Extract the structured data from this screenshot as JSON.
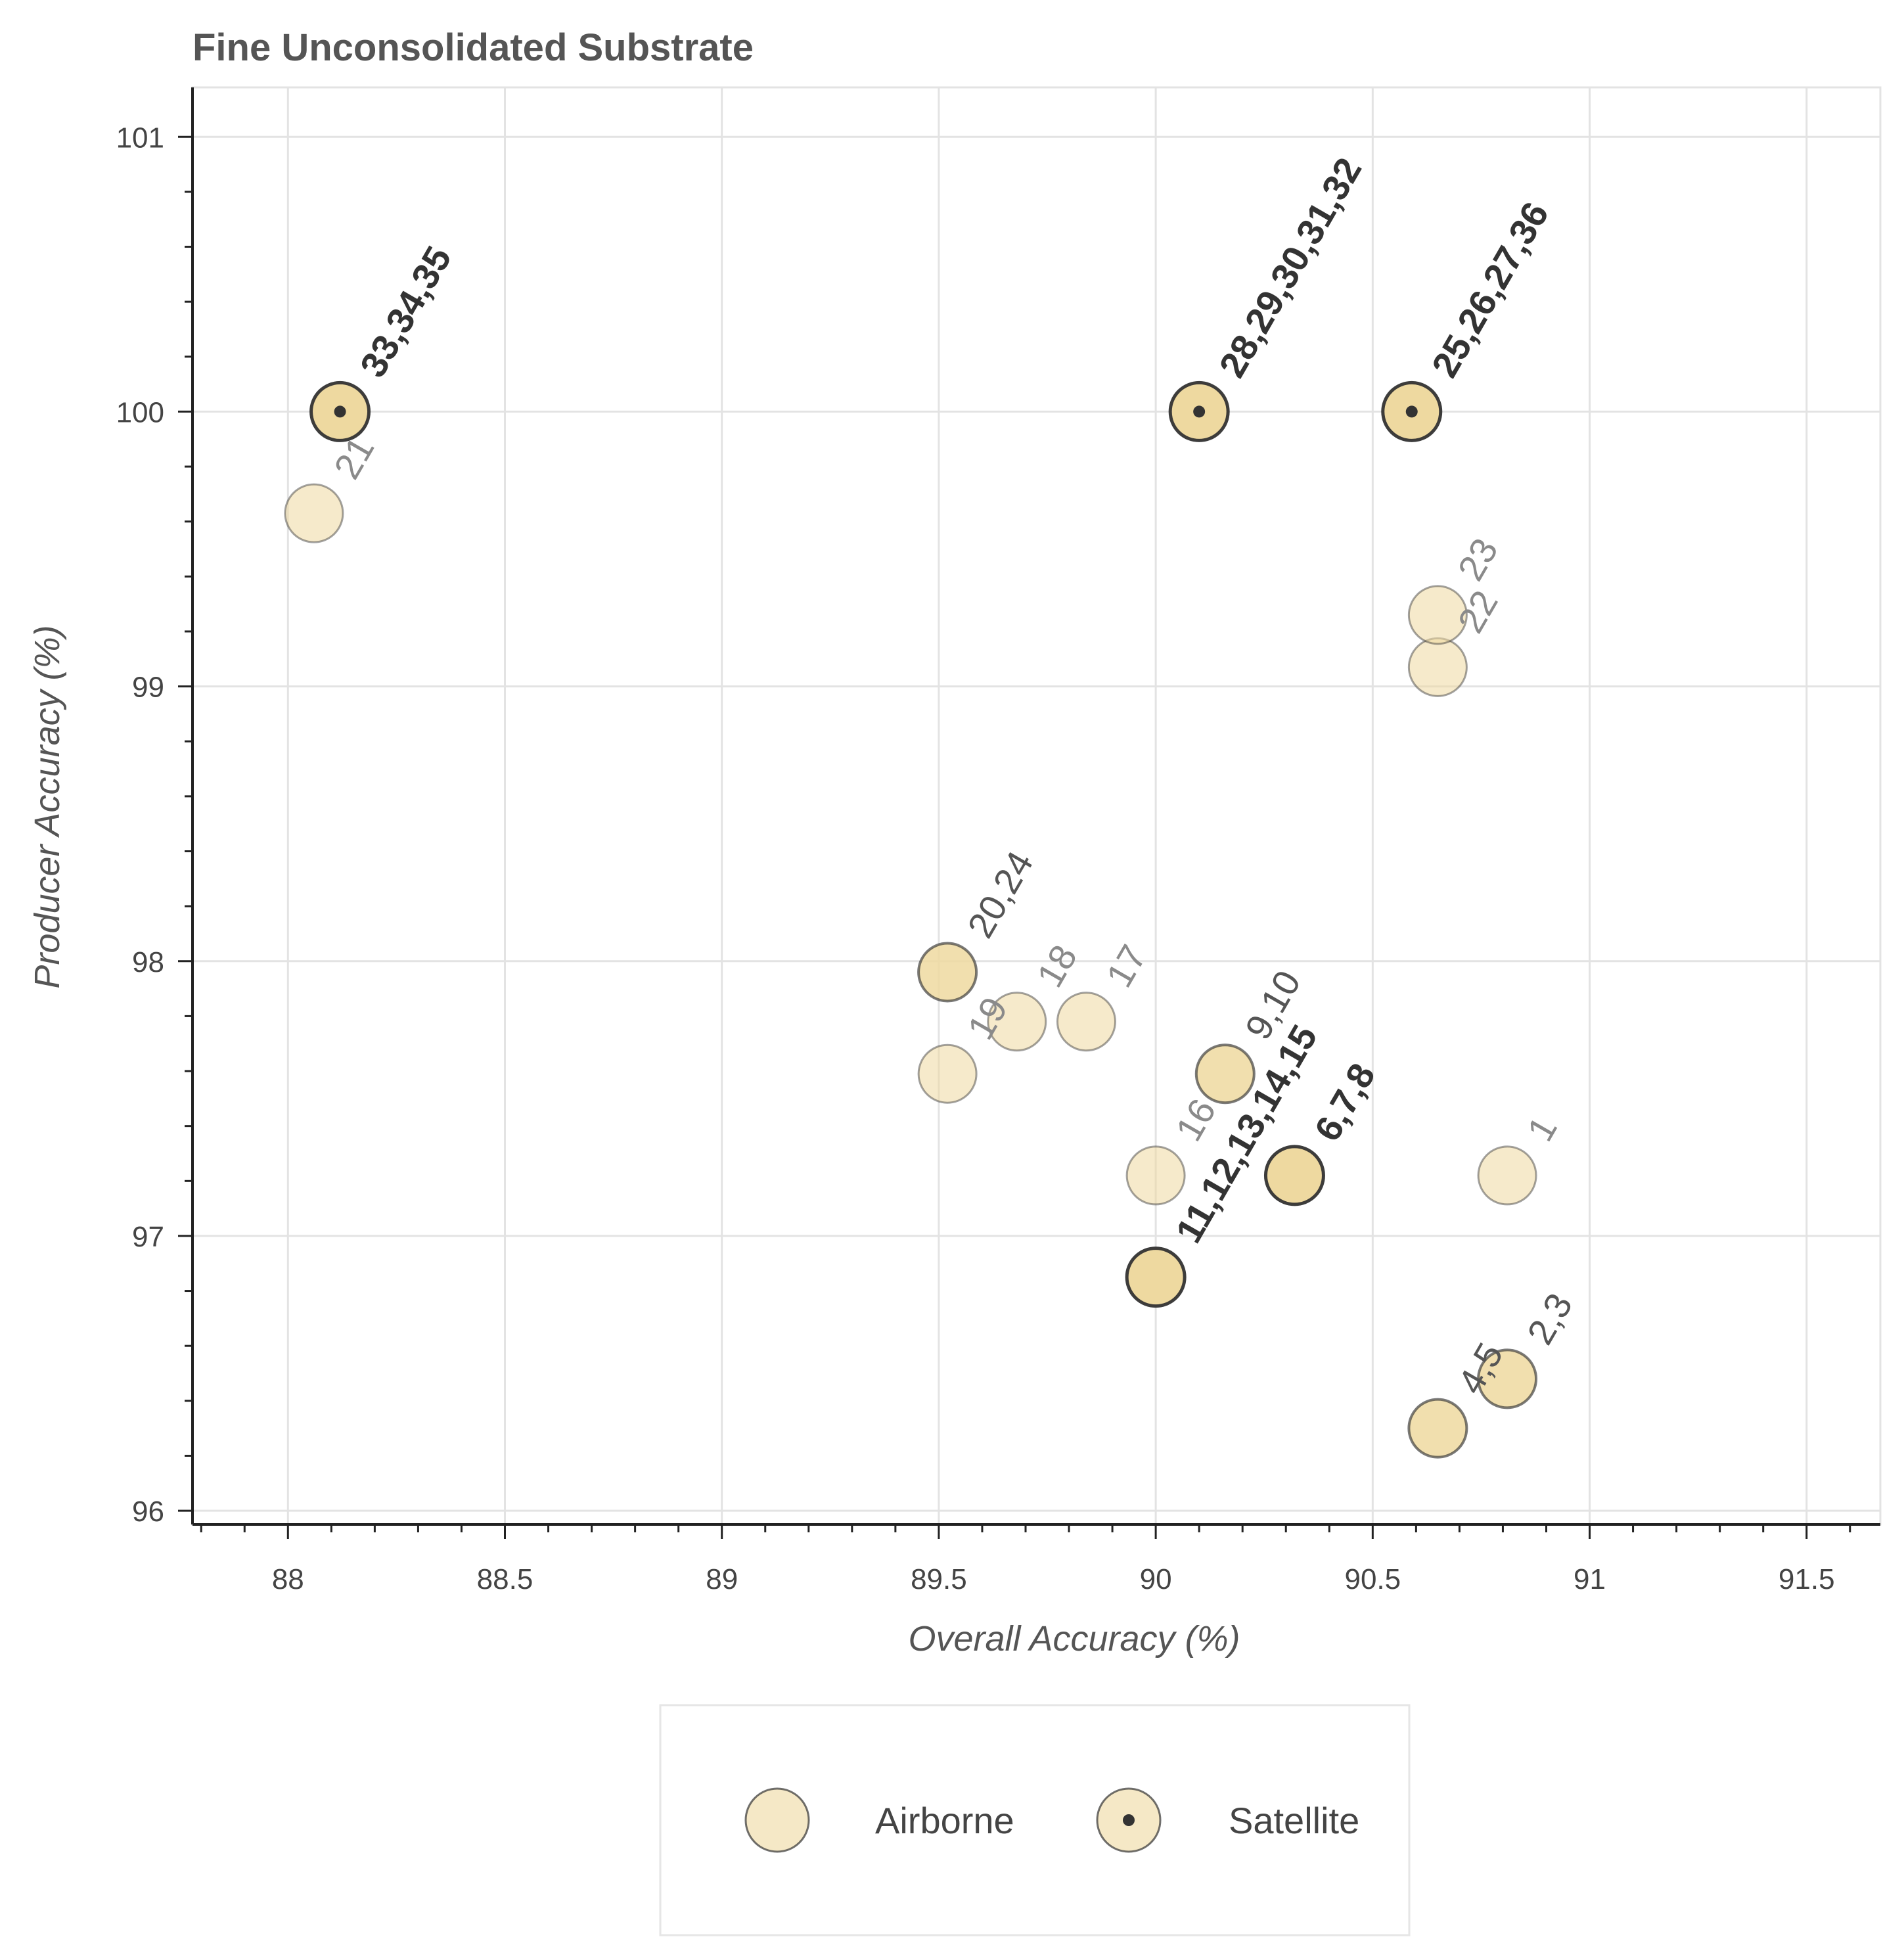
{
  "chart_data": {
    "type": "scatter",
    "title": "Fine Unconsolidated Substrate",
    "xlabel": "Overall Accuracy (%)",
    "ylabel": "Producer Accuracy (%)",
    "xlim": [
      87.78,
      91.67
    ],
    "ylim": [
      95.95,
      101.18
    ],
    "x_ticks": [
      "88",
      "88.5",
      "89",
      "89.5",
      "90",
      "90.5",
      "91",
      "91.5"
    ],
    "y_ticks": [
      "96",
      "97",
      "98",
      "99",
      "100",
      "101"
    ],
    "grid": true,
    "legend_position": "bottom-center",
    "colors": {
      "marker_fill": "#eed9a0",
      "marker_stroke": "#333333",
      "satellite_dot": "#333333",
      "grid": "#e3e3e3",
      "axis": "#222222"
    },
    "series": [
      {
        "name": "Airborne",
        "points": [
          {
            "x": 90.81,
            "y": 97.22,
            "label": "1",
            "weight": "light"
          },
          {
            "x": 90.81,
            "y": 96.48,
            "label": "2,3",
            "weight": "medium"
          },
          {
            "x": 90.65,
            "y": 96.3,
            "label": "4,5",
            "weight": "medium"
          },
          {
            "x": 90.32,
            "y": 97.22,
            "label": "6,7,8",
            "weight": "strong"
          },
          {
            "x": 90.16,
            "y": 97.59,
            "label": "9,10",
            "weight": "medium"
          },
          {
            "x": 90.0,
            "y": 96.85,
            "label": "11,12,13,14,15",
            "weight": "strong"
          },
          {
            "x": 90.0,
            "y": 97.22,
            "label": "16",
            "weight": "light"
          },
          {
            "x": 89.84,
            "y": 97.78,
            "label": "17",
            "weight": "light"
          },
          {
            "x": 89.68,
            "y": 97.78,
            "label": "18",
            "weight": "light"
          },
          {
            "x": 89.52,
            "y": 97.59,
            "label": "19",
            "weight": "light"
          },
          {
            "x": 89.52,
            "y": 97.96,
            "label": "20,24",
            "weight": "medium"
          },
          {
            "x": 88.06,
            "y": 99.63,
            "label": "21",
            "weight": "light"
          },
          {
            "x": 90.65,
            "y": 99.07,
            "label": "22",
            "weight": "light"
          },
          {
            "x": 90.65,
            "y": 99.26,
            "label": "23",
            "weight": "light"
          }
        ]
      },
      {
        "name": "Satellite",
        "points": [
          {
            "x": 90.59,
            "y": 100.0,
            "label": "25,26,27,36",
            "weight": "strong"
          },
          {
            "x": 90.1,
            "y": 100.0,
            "label": "28,29,30,31,32",
            "weight": "strong"
          },
          {
            "x": 88.12,
            "y": 100.0,
            "label": "33,34,35",
            "weight": "strong"
          }
        ]
      }
    ],
    "legend": [
      {
        "name": "Airborne",
        "marker": "circle"
      },
      {
        "name": "Satellite",
        "marker": "circle-dot"
      }
    ]
  }
}
